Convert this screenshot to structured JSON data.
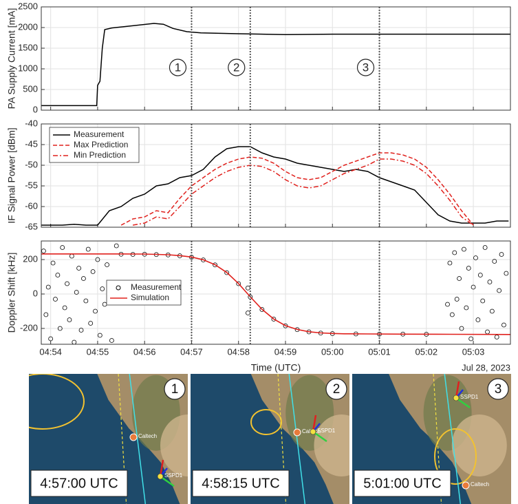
{
  "chart_data": [
    {
      "type": "line",
      "ylabel": "PA Supply Current [mA]",
      "xlim": [
        293.8,
        303.79
      ],
      "ylim": [
        0,
        2500
      ],
      "yticks": [
        0,
        500,
        1000,
        1500,
        2000,
        2500
      ],
      "xticks": [
        294,
        295,
        296,
        297,
        298,
        299,
        300,
        301,
        302,
        303
      ],
      "grid": true,
      "vlines": [
        297,
        298.25,
        301
      ],
      "vline_labels": [
        "1",
        "2",
        "3"
      ],
      "x": [
        293.8,
        294.98,
        295.0,
        295.05,
        295.1,
        295.15,
        295.3,
        295.8,
        296.2,
        296.4,
        296.6,
        296.9,
        297.2,
        298,
        299,
        300,
        301,
        302,
        303.79
      ],
      "series": [
        {
          "color": "#000000",
          "values": [
            110,
            110,
            600,
            700,
            1500,
            1950,
            1990,
            2050,
            2100,
            2080,
            1980,
            1900,
            1870,
            1850,
            1830,
            1840,
            1840,
            1840,
            1840
          ]
        }
      ]
    },
    {
      "type": "line",
      "ylabel": "IF Signal Power [dBm]",
      "xlim": [
        293.8,
        303.79
      ],
      "ylim": [
        -65,
        -40
      ],
      "yticks": [
        -65,
        -60,
        -55,
        -50,
        -45,
        -40
      ],
      "xticks": [
        294,
        295,
        296,
        297,
        298,
        299,
        300,
        301,
        302,
        303
      ],
      "grid": true,
      "legend": "upper left",
      "vlines": [
        297,
        298.25,
        301
      ],
      "x": [
        293.8,
        294,
        294.25,
        294.5,
        294.75,
        295,
        295.25,
        295.5,
        295.75,
        296,
        296.25,
        296.5,
        296.75,
        297,
        297.25,
        297.5,
        297.75,
        298,
        298.25,
        298.5,
        298.75,
        299,
        299.25,
        299.5,
        299.75,
        300,
        300.25,
        300.5,
        300.75,
        301,
        301.25,
        301.5,
        301.75,
        302,
        302.25,
        302.5,
        302.75,
        303,
        303.25,
        303.5,
        303.75
      ],
      "series": [
        {
          "name": "Measurement",
          "color": "#000000",
          "dash": "solid",
          "values": [
            -64.5,
            -64.5,
            -64.5,
            -64.3,
            -64.5,
            -64.5,
            -61,
            -60,
            -58,
            -57,
            -55,
            -54.5,
            -53,
            -52.5,
            -51,
            -48,
            -46,
            -45.5,
            -45.5,
            -47,
            -48,
            -48.5,
            -49.5,
            -50,
            -50.5,
            -51,
            -51.5,
            -51,
            -51.5,
            -53,
            -54,
            -55,
            -56,
            -59,
            -62,
            -63.5,
            -64,
            -64,
            -64,
            -63.5,
            -63.5
          ]
        },
        {
          "name": "Max Prediction",
          "color": "#e0201c",
          "dash": "dashed",
          "values": [
            null,
            null,
            null,
            null,
            null,
            null,
            null,
            -64.5,
            -63,
            -62.5,
            -61,
            -61.5,
            -58,
            -55,
            -53,
            -51,
            -49.5,
            -48.5,
            -48,
            -48.3,
            -49.5,
            -51.5,
            -53,
            -53.5,
            -53,
            -51.5,
            -50,
            -49,
            -48,
            -47,
            -47,
            -47.5,
            -48.5,
            -50.5,
            -53.5,
            -57,
            -61,
            -64.5,
            null,
            null,
            null
          ]
        },
        {
          "name": "Min Prediction",
          "color": "#e0201c",
          "dash": "dashdot",
          "values": [
            null,
            null,
            null,
            null,
            null,
            null,
            null,
            null,
            -64.5,
            -64,
            -62.5,
            -63,
            -60,
            -57,
            -55,
            -53,
            -51.5,
            -50.5,
            -50,
            -50.3,
            -51.5,
            -53.5,
            -55,
            -55.5,
            -55,
            -53.5,
            -52,
            -51,
            -50,
            -48.5,
            -48.5,
            -49,
            -50,
            -52,
            -55,
            -58.5,
            -62.5,
            -64.5,
            null,
            null,
            null
          ]
        }
      ]
    },
    {
      "type": "line",
      "ylabel": "Doppler Shift [kHz]",
      "xlabel": "Time (UTC)",
      "date_label": "Jul 28, 2023",
      "xlim": [
        293.8,
        303.79
      ],
      "ylim": [
        -292,
        308
      ],
      "yticks": [
        -200,
        0,
        200
      ],
      "grid": true,
      "legend": "center left",
      "xticks": [
        {
          "value": 294,
          "label": "04:54"
        },
        {
          "value": 295,
          "label": "04:55"
        },
        {
          "value": 296,
          "label": "04:56"
        },
        {
          "value": 297,
          "label": "04:57"
        },
        {
          "value": 298,
          "label": "04:58"
        },
        {
          "value": 299,
          "label": "04:59"
        },
        {
          "value": 300,
          "label": "05:00"
        },
        {
          "value": 301,
          "label": "05:01"
        },
        {
          "value": 302,
          "label": "05:02"
        },
        {
          "value": 303,
          "label": "05:03"
        }
      ],
      "vlines": [
        297,
        298.25,
        301
      ],
      "series": [
        {
          "name": "Measurement",
          "color": "#000000",
          "mode": "markers",
          "x": [
            293.85,
            293.9,
            293.95,
            294.0,
            294.05,
            294.1,
            294.15,
            294.2,
            294.25,
            294.3,
            294.35,
            294.4,
            294.45,
            294.5,
            294.55,
            294.6,
            294.65,
            294.7,
            294.75,
            294.8,
            294.85,
            294.9,
            294.95,
            295.0,
            295.05,
            295.1,
            295.15,
            295.2,
            295.3,
            295.4,
            302.45,
            302.5,
            302.55,
            302.6,
            302.65,
            302.7,
            302.75,
            302.8,
            302.85,
            302.9,
            302.95,
            303.0,
            303.05,
            303.1,
            303.15,
            303.2,
            303.25,
            303.3,
            303.35,
            303.4,
            303.45,
            303.5,
            303.55,
            303.6,
            303.65,
            303.7,
            295.5,
            295.75,
            296,
            296.25,
            296.5,
            296.75,
            297,
            297.25,
            297.5,
            297.75,
            298,
            298.2,
            298.2,
            298.25,
            298.5,
            298.75,
            299,
            299.25,
            299.5,
            299.75,
            300,
            300.5,
            301,
            301.5,
            302
          ],
          "values": [
            250,
            -120,
            40,
            -260,
            180,
            -30,
            110,
            -200,
            270,
            -80,
            60,
            -150,
            220,
            -280,
            10,
            150,
            -210,
            90,
            -40,
            260,
            -170,
            130,
            -100,
            200,
            -240,
            30,
            -60,
            170,
            -270,
            280,
            -60,
            180,
            -120,
            240,
            -30,
            90,
            -200,
            260,
            -80,
            150,
            -260,
            40,
            210,
            -150,
            110,
            -40,
            270,
            -220,
            70,
            -100,
            190,
            -250,
            20,
            230,
            -180,
            120,
            231,
            230,
            231,
            229,
            227,
            222,
            214,
            198,
            169,
            124,
            60,
            35,
            -110,
            -17,
            -90,
            -146,
            -185,
            -207,
            -220,
            -227,
            -230,
            -232,
            -233,
            -233,
            -234
          ]
        },
        {
          "name": "Simulation",
          "color": "#e0201c",
          "mode": "line",
          "x": [
            293.8,
            294.5,
            295,
            295.5,
            296,
            296.25,
            296.5,
            296.75,
            297,
            297.25,
            297.5,
            297.75,
            298,
            298.25,
            298.5,
            298.75,
            299,
            299.25,
            299.5,
            299.75,
            300,
            300.25,
            300.75,
            301.5,
            302.5,
            303.79
          ],
          "values": [
            233,
            233,
            233,
            233,
            232,
            230,
            228,
            223,
            215,
            199,
            170,
            125,
            61,
            -16,
            -89,
            -145,
            -184,
            -206,
            -219,
            -226,
            -229,
            -231,
            -232,
            -233,
            -234,
            -235
          ]
        }
      ]
    }
  ],
  "maps": [
    {
      "number": "1",
      "time": "4:57:00 UTC",
      "site": "Caltech",
      "satellite": "SSPD1"
    },
    {
      "number": "2",
      "time": "4:58:15 UTC",
      "site": "Caltech",
      "satellite": "SSPD1"
    },
    {
      "number": "3",
      "time": "5:01:00 UTC",
      "site": "Caltech",
      "satellite": "SSPD1"
    }
  ]
}
